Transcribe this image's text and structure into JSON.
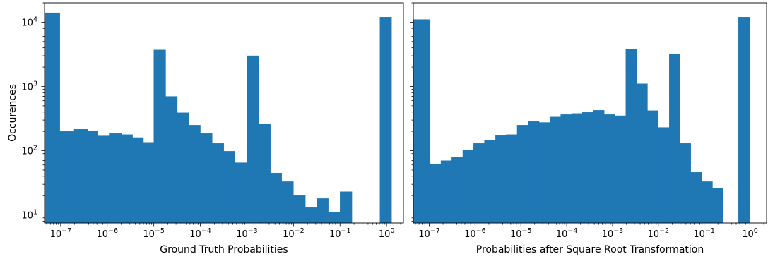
{
  "chart_data": [
    {
      "type": "bar",
      "subtype": "histogram",
      "xscale": "log",
      "yscale": "log",
      "xlabel": "Ground Truth Probabilities",
      "ylabel": "Occurences",
      "xlim": [
        4.5e-08,
        2.3
      ],
      "ylim": [
        7.5,
        20000
      ],
      "xticks": [
        {
          "base": "10",
          "exp": "−7",
          "value": 1e-07
        },
        {
          "base": "10",
          "exp": "−6",
          "value": 1e-06
        },
        {
          "base": "10",
          "exp": "−5",
          "value": 1e-05
        },
        {
          "base": "10",
          "exp": "−4",
          "value": 0.0001
        },
        {
          "base": "10",
          "exp": "−3",
          "value": 0.001
        },
        {
          "base": "10",
          "exp": "−2",
          "value": 0.01
        },
        {
          "base": "10",
          "exp": "−1",
          "value": 0.1
        },
        {
          "base": "10",
          "exp": "0",
          "value": 1
        }
      ],
      "yticks": [
        {
          "base": "10",
          "exp": "1",
          "value": 10
        },
        {
          "base": "10",
          "exp": "2",
          "value": 100
        },
        {
          "base": "10",
          "exp": "3",
          "value": 1000
        },
        {
          "base": "10",
          "exp": "4",
          "value": 10000
        }
      ],
      "color": "#1f77b4",
      "bins": [
        {
          "x0": 4.5e-08,
          "x1": 9.6e-08,
          "count": 14000
        },
        {
          "x0": 9.6e-08,
          "x1": 1.95e-07,
          "count": 200
        },
        {
          "x0": 1.95e-07,
          "x1": 3.8e-07,
          "count": 215
        },
        {
          "x0": 3.8e-07,
          "x1": 6.2e-07,
          "count": 205
        },
        {
          "x0": 6.2e-07,
          "x1": 1.1e-06,
          "count": 170
        },
        {
          "x0": 1.1e-06,
          "x1": 2.05e-06,
          "count": 185
        },
        {
          "x0": 2.05e-06,
          "x1": 3.5e-06,
          "count": 178
        },
        {
          "x0": 3.5e-06,
          "x1": 6e-06,
          "count": 160
        },
        {
          "x0": 6e-06,
          "x1": 1e-05,
          "count": 135
        },
        {
          "x0": 1e-05,
          "x1": 1.8e-05,
          "count": 3700
        },
        {
          "x0": 1.8e-05,
          "x1": 3.2e-05,
          "count": 700
        },
        {
          "x0": 3.2e-05,
          "x1": 5.6e-05,
          "count": 390
        },
        {
          "x0": 5.6e-05,
          "x1": 0.0001,
          "count": 250
        },
        {
          "x0": 0.0001,
          "x1": 0.00018,
          "count": 185
        },
        {
          "x0": 0.00018,
          "x1": 0.00032,
          "count": 130
        },
        {
          "x0": 0.00032,
          "x1": 0.00056,
          "count": 98
        },
        {
          "x0": 0.00056,
          "x1": 0.001,
          "count": 65
        },
        {
          "x0": 0.001,
          "x1": 0.0018,
          "count": 3000
        },
        {
          "x0": 0.0018,
          "x1": 0.0032,
          "count": 260
        },
        {
          "x0": 0.0032,
          "x1": 0.0056,
          "count": 45
        },
        {
          "x0": 0.0056,
          "x1": 0.01,
          "count": 33
        },
        {
          "x0": 0.01,
          "x1": 0.018,
          "count": 20
        },
        {
          "x0": 0.018,
          "x1": 0.032,
          "count": 13
        },
        {
          "x0": 0.032,
          "x1": 0.056,
          "count": 18
        },
        {
          "x0": 0.056,
          "x1": 0.1,
          "count": 11
        },
        {
          "x0": 0.1,
          "x1": 0.18,
          "count": 23
        },
        {
          "x0": 0.72,
          "x1": 1.28,
          "count": 12000
        }
      ]
    },
    {
      "type": "bar",
      "subtype": "histogram",
      "xscale": "log",
      "yscale": "log",
      "xlabel": "Probabilities after Square Root Transformation",
      "ylabel": "",
      "xlim": [
        4.5e-08,
        2.3
      ],
      "ylim": [
        7.5,
        20000
      ],
      "shared_y": true,
      "xticks": [
        {
          "base": "10",
          "exp": "−7",
          "value": 1e-07
        },
        {
          "base": "10",
          "exp": "−6",
          "value": 1e-06
        },
        {
          "base": "10",
          "exp": "−5",
          "value": 1e-05
        },
        {
          "base": "10",
          "exp": "−4",
          "value": 0.0001
        },
        {
          "base": "10",
          "exp": "−3",
          "value": 0.001
        },
        {
          "base": "10",
          "exp": "−2",
          "value": 0.01
        },
        {
          "base": "10",
          "exp": "−1",
          "value": 0.1
        },
        {
          "base": "10",
          "exp": "0",
          "value": 1
        }
      ],
      "color": "#1f77b4",
      "bins": [
        {
          "x0": 4.5e-08,
          "x1": 1.05e-07,
          "count": 11000
        },
        {
          "x0": 1.05e-07,
          "x1": 1.8e-07,
          "count": 62
        },
        {
          "x0": 1.8e-07,
          "x1": 3.1e-07,
          "count": 70
        },
        {
          "x0": 3.1e-07,
          "x1": 5.4e-07,
          "count": 80
        },
        {
          "x0": 5.4e-07,
          "x1": 9.3e-07,
          "count": 103
        },
        {
          "x0": 9.3e-07,
          "x1": 1.6e-06,
          "count": 130
        },
        {
          "x0": 1.6e-06,
          "x1": 2.8e-06,
          "count": 145
        },
        {
          "x0": 2.8e-06,
          "x1": 4.8e-06,
          "count": 172
        },
        {
          "x0": 4.8e-06,
          "x1": 8.3e-06,
          "count": 178
        },
        {
          "x0": 8.3e-06,
          "x1": 1.45e-05,
          "count": 250
        },
        {
          "x0": 1.45e-05,
          "x1": 2.5e-05,
          "count": 285
        },
        {
          "x0": 2.5e-05,
          "x1": 4.3e-05,
          "count": 275
        },
        {
          "x0": 4.3e-05,
          "x1": 7.4e-05,
          "count": 335
        },
        {
          "x0": 7.4e-05,
          "x1": 0.000128,
          "count": 365
        },
        {
          "x0": 0.000128,
          "x1": 0.00022,
          "count": 380
        },
        {
          "x0": 0.00022,
          "x1": 0.00038,
          "count": 395
        },
        {
          "x0": 0.00038,
          "x1": 0.00066,
          "count": 425
        },
        {
          "x0": 0.00066,
          "x1": 0.00114,
          "count": 365
        },
        {
          "x0": 0.00114,
          "x1": 0.00195,
          "count": 350
        },
        {
          "x0": 0.00195,
          "x1": 0.0034,
          "count": 3800
        },
        {
          "x0": 0.0034,
          "x1": 0.0058,
          "count": 1100
        },
        {
          "x0": 0.0058,
          "x1": 0.01,
          "count": 420
        },
        {
          "x0": 0.01,
          "x1": 0.0173,
          "count": 230
        },
        {
          "x0": 0.0173,
          "x1": 0.03,
          "count": 3200
        },
        {
          "x0": 0.03,
          "x1": 0.051,
          "count": 130
        },
        {
          "x0": 0.051,
          "x1": 0.088,
          "count": 46
        },
        {
          "x0": 0.088,
          "x1": 0.152,
          "count": 33
        },
        {
          "x0": 0.152,
          "x1": 0.26,
          "count": 26
        },
        {
          "x0": 0.56,
          "x1": 1.0,
          "count": 12000
        }
      ]
    }
  ]
}
